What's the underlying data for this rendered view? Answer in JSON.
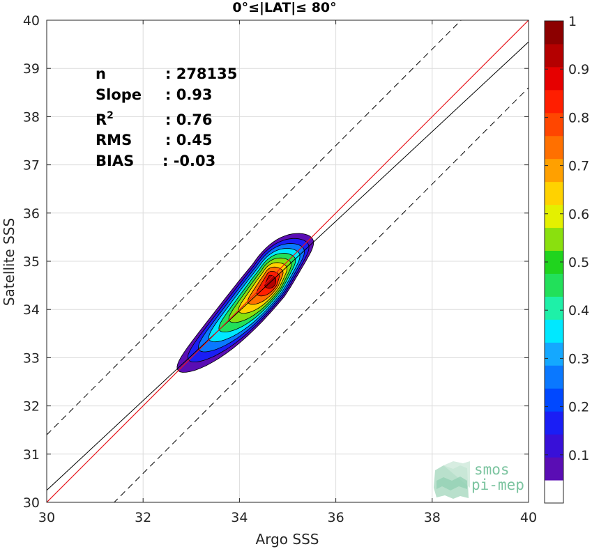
{
  "chart_data": {
    "type": "contour",
    "title": "0°≤|LAT|≤ 80°",
    "xlabel": "Argo SSS",
    "ylabel": "Satellite SSS",
    "xlim": [
      30,
      40
    ],
    "ylim": [
      30,
      40
    ],
    "xticks": [
      30,
      32,
      34,
      36,
      38,
      40
    ],
    "yticks": [
      30,
      31,
      32,
      33,
      34,
      35,
      36,
      37,
      38,
      39,
      40
    ],
    "grid": true,
    "stats": [
      {
        "key": "n",
        "value": ": 278135"
      },
      {
        "key": "Slope",
        "value": ": 0.93"
      },
      {
        "key": "R",
        "sup": "2",
        "value": ": 0.76"
      },
      {
        "key": "RMS",
        "value": ": 0.45"
      },
      {
        "key": "BIAS",
        "value": ": -0.03"
      }
    ],
    "lines": {
      "identity": {
        "slope": 1,
        "intercept": 0,
        "color": "#e8141b"
      },
      "fit": {
        "slope": 0.93,
        "intercept": 2.35,
        "color": "#000000"
      },
      "bounds": {
        "slope": 1,
        "offset": 1.4,
        "color": "#000000",
        "dash": true
      }
    },
    "density_center": [
      34.6,
      34.6
    ],
    "density_levels": [
      0.05,
      0.1,
      0.2,
      0.3,
      0.4,
      0.5,
      0.6,
      0.7,
      0.8,
      0.9
    ],
    "colorbar": {
      "range": [
        0,
        1
      ],
      "ticks": [
        0.1,
        0.2,
        0.3,
        0.4,
        0.5,
        0.6,
        0.7,
        0.8,
        0.9,
        1
      ],
      "colors": [
        "#ffffff",
        "#5a0db4",
        "#3810d8",
        "#1a1ef5",
        "#0048ff",
        "#0a78ff",
        "#14a8ff",
        "#00e8ff",
        "#1ef0a8",
        "#22e05a",
        "#20d41e",
        "#8ae00e",
        "#e4f000",
        "#ffd200",
        "#ffa000",
        "#ff7000",
        "#ff4600",
        "#ff1e00",
        "#e60000",
        "#b40000",
        "#8c0000"
      ]
    },
    "logo": {
      "line1": "smos",
      "line2": "pi-mep"
    }
  }
}
